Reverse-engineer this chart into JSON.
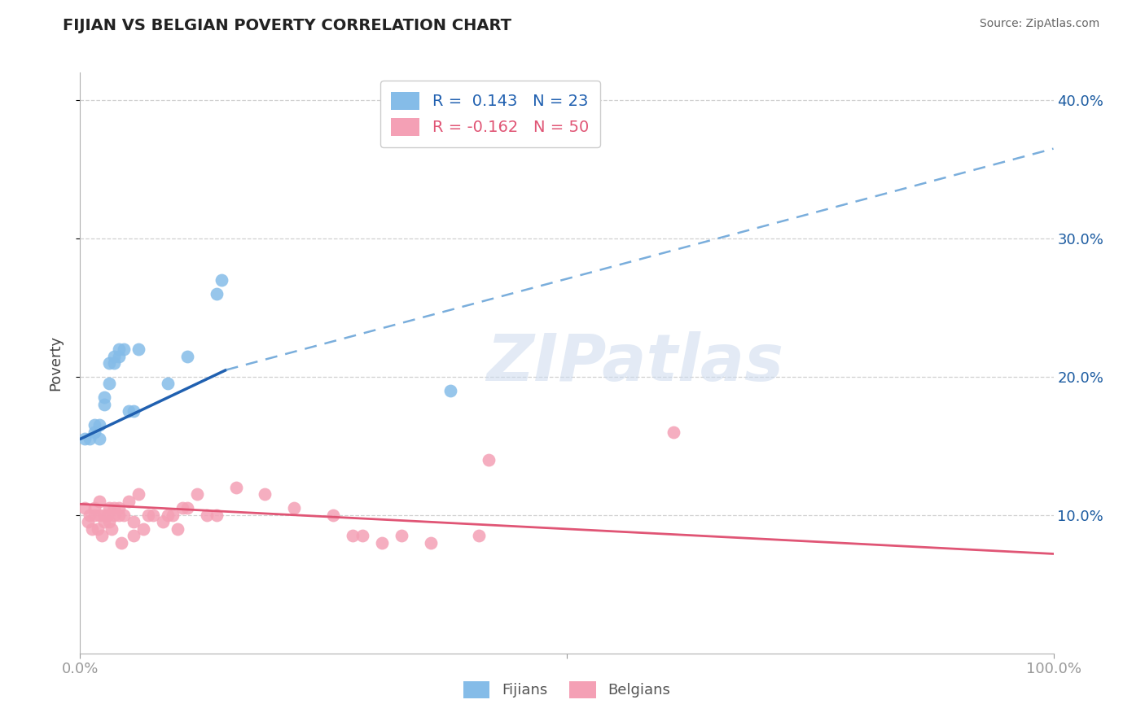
{
  "title": "FIJIAN VS BELGIAN POVERTY CORRELATION CHART",
  "source": "Source: ZipAtlas.com",
  "ylabel": "Poverty",
  "xlim": [
    0.0,
    1.0
  ],
  "ylim": [
    0.0,
    0.42
  ],
  "y_ticks": [
    0.1,
    0.2,
    0.3,
    0.4
  ],
  "y_tick_labels": [
    "10.0%",
    "20.0%",
    "30.0%",
    "40.0%"
  ],
  "fijian_color": "#85bce8",
  "belgian_color": "#f4a0b5",
  "fijian_line_color": "#2060b0",
  "fijian_line_dash_color": "#7aaedc",
  "belgian_line_color": "#e05575",
  "fijian_r": "0.143",
  "fijian_n": "23",
  "belgian_r": "-0.162",
  "belgian_n": "50",
  "legend_label_fijian": "Fijians",
  "legend_label_belgian": "Belgians",
  "watermark": "ZIPatlas",
  "fijian_x": [
    0.005,
    0.01,
    0.015,
    0.015,
    0.02,
    0.02,
    0.025,
    0.025,
    0.03,
    0.03,
    0.035,
    0.035,
    0.04,
    0.04,
    0.045,
    0.05,
    0.055,
    0.06,
    0.09,
    0.11,
    0.14,
    0.145,
    0.38
  ],
  "fijian_y": [
    0.155,
    0.155,
    0.16,
    0.165,
    0.155,
    0.165,
    0.18,
    0.185,
    0.195,
    0.21,
    0.21,
    0.215,
    0.215,
    0.22,
    0.22,
    0.175,
    0.175,
    0.22,
    0.195,
    0.215,
    0.26,
    0.27,
    0.19
  ],
  "belgian_x": [
    0.005,
    0.008,
    0.01,
    0.012,
    0.015,
    0.015,
    0.018,
    0.02,
    0.02,
    0.022,
    0.025,
    0.025,
    0.028,
    0.03,
    0.03,
    0.032,
    0.035,
    0.035,
    0.04,
    0.04,
    0.042,
    0.045,
    0.05,
    0.055,
    0.055,
    0.06,
    0.065,
    0.07,
    0.075,
    0.085,
    0.09,
    0.095,
    0.1,
    0.105,
    0.11,
    0.12,
    0.13,
    0.14,
    0.16,
    0.19,
    0.22,
    0.26,
    0.28,
    0.29,
    0.31,
    0.33,
    0.36,
    0.41,
    0.42,
    0.61
  ],
  "belgian_y": [
    0.105,
    0.095,
    0.1,
    0.09,
    0.1,
    0.105,
    0.09,
    0.1,
    0.11,
    0.085,
    0.095,
    0.1,
    0.1,
    0.095,
    0.105,
    0.09,
    0.1,
    0.105,
    0.1,
    0.105,
    0.08,
    0.1,
    0.11,
    0.085,
    0.095,
    0.115,
    0.09,
    0.1,
    0.1,
    0.095,
    0.1,
    0.1,
    0.09,
    0.105,
    0.105,
    0.115,
    0.1,
    0.1,
    0.12,
    0.115,
    0.105,
    0.1,
    0.085,
    0.085,
    0.08,
    0.085,
    0.08,
    0.085,
    0.14,
    0.16
  ],
  "fijian_line_x0": 0.0,
  "fijian_line_x_solid_end": 0.15,
  "fijian_line_x1": 1.0,
  "fijian_line_y0": 0.155,
  "fijian_line_y_solid_end": 0.205,
  "fijian_line_y1": 0.365,
  "belgian_line_x0": 0.0,
  "belgian_line_x1": 1.0,
  "belgian_line_y0": 0.108,
  "belgian_line_y1": 0.072,
  "background_color": "#ffffff",
  "grid_color": "#d0d0d0"
}
